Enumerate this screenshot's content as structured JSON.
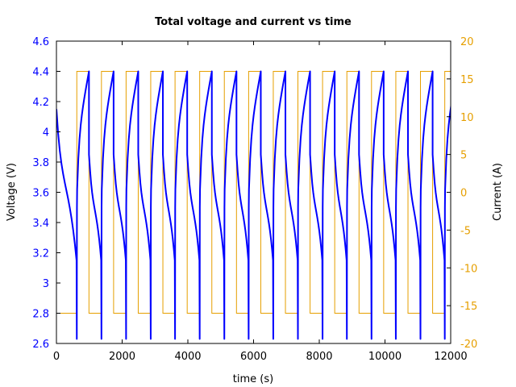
{
  "chart_data": {
    "type": "line",
    "title": "Total voltage and current vs time",
    "xlabel": "time (s)",
    "ylabel": "Voltage (V)",
    "y2label": "Current (A)",
    "xlim": [
      0,
      12000
    ],
    "ylim": [
      2.6,
      4.6
    ],
    "y2lim": [
      -20,
      20
    ],
    "grid": false,
    "legend": null,
    "x_ticks": [
      "0",
      "2000",
      "4000",
      "6000",
      "8000",
      "10000",
      "12000"
    ],
    "y_ticks": [
      "2.6",
      "2.8",
      "3",
      "3.2",
      "3.4",
      "3.6",
      "3.8",
      "4",
      "4.2",
      "4.4",
      "4.6"
    ],
    "y2_ticks": [
      "-20",
      "-15",
      "-10",
      "-5",
      "0",
      "5",
      "10",
      "15",
      "20"
    ],
    "colors": {
      "voltage": "#0000ff",
      "current": "#e69f00"
    },
    "cycle": {
      "charge_start_times_s": [
        620,
        1370,
        2120,
        2870,
        3610,
        4360,
        5110,
        5850,
        6600,
        7350,
        8100,
        8840,
        9590,
        10330,
        11080,
        11820
      ],
      "charge_duration_s": 370,
      "charge_current_A": 16,
      "discharge_current_A": -16,
      "voltage_max_V": 4.4,
      "voltage_min_V": 2.63,
      "voltage_discharge_end_V": 3.15,
      "voltage_charge_start_V": 3.5,
      "initial_voltage_V": 4.15
    },
    "series": [
      {
        "name": "Voltage",
        "axis": "left",
        "x": [
          0,
          50,
          150,
          300,
          450,
          560,
          610,
          620,
          630,
          660,
          760,
          880,
          990
        ],
        "values": [
          4.15,
          3.85,
          3.65,
          3.45,
          3.3,
          3.2,
          3.1,
          2.63,
          3.5,
          3.85,
          4.0,
          4.2,
          4.4
        ]
      },
      {
        "name": "Current",
        "axis": "right",
        "x": [
          0,
          620,
          620,
          990,
          990,
          1370
        ],
        "values": [
          -16,
          -16,
          16,
          16,
          -16,
          -16
        ]
      }
    ]
  }
}
